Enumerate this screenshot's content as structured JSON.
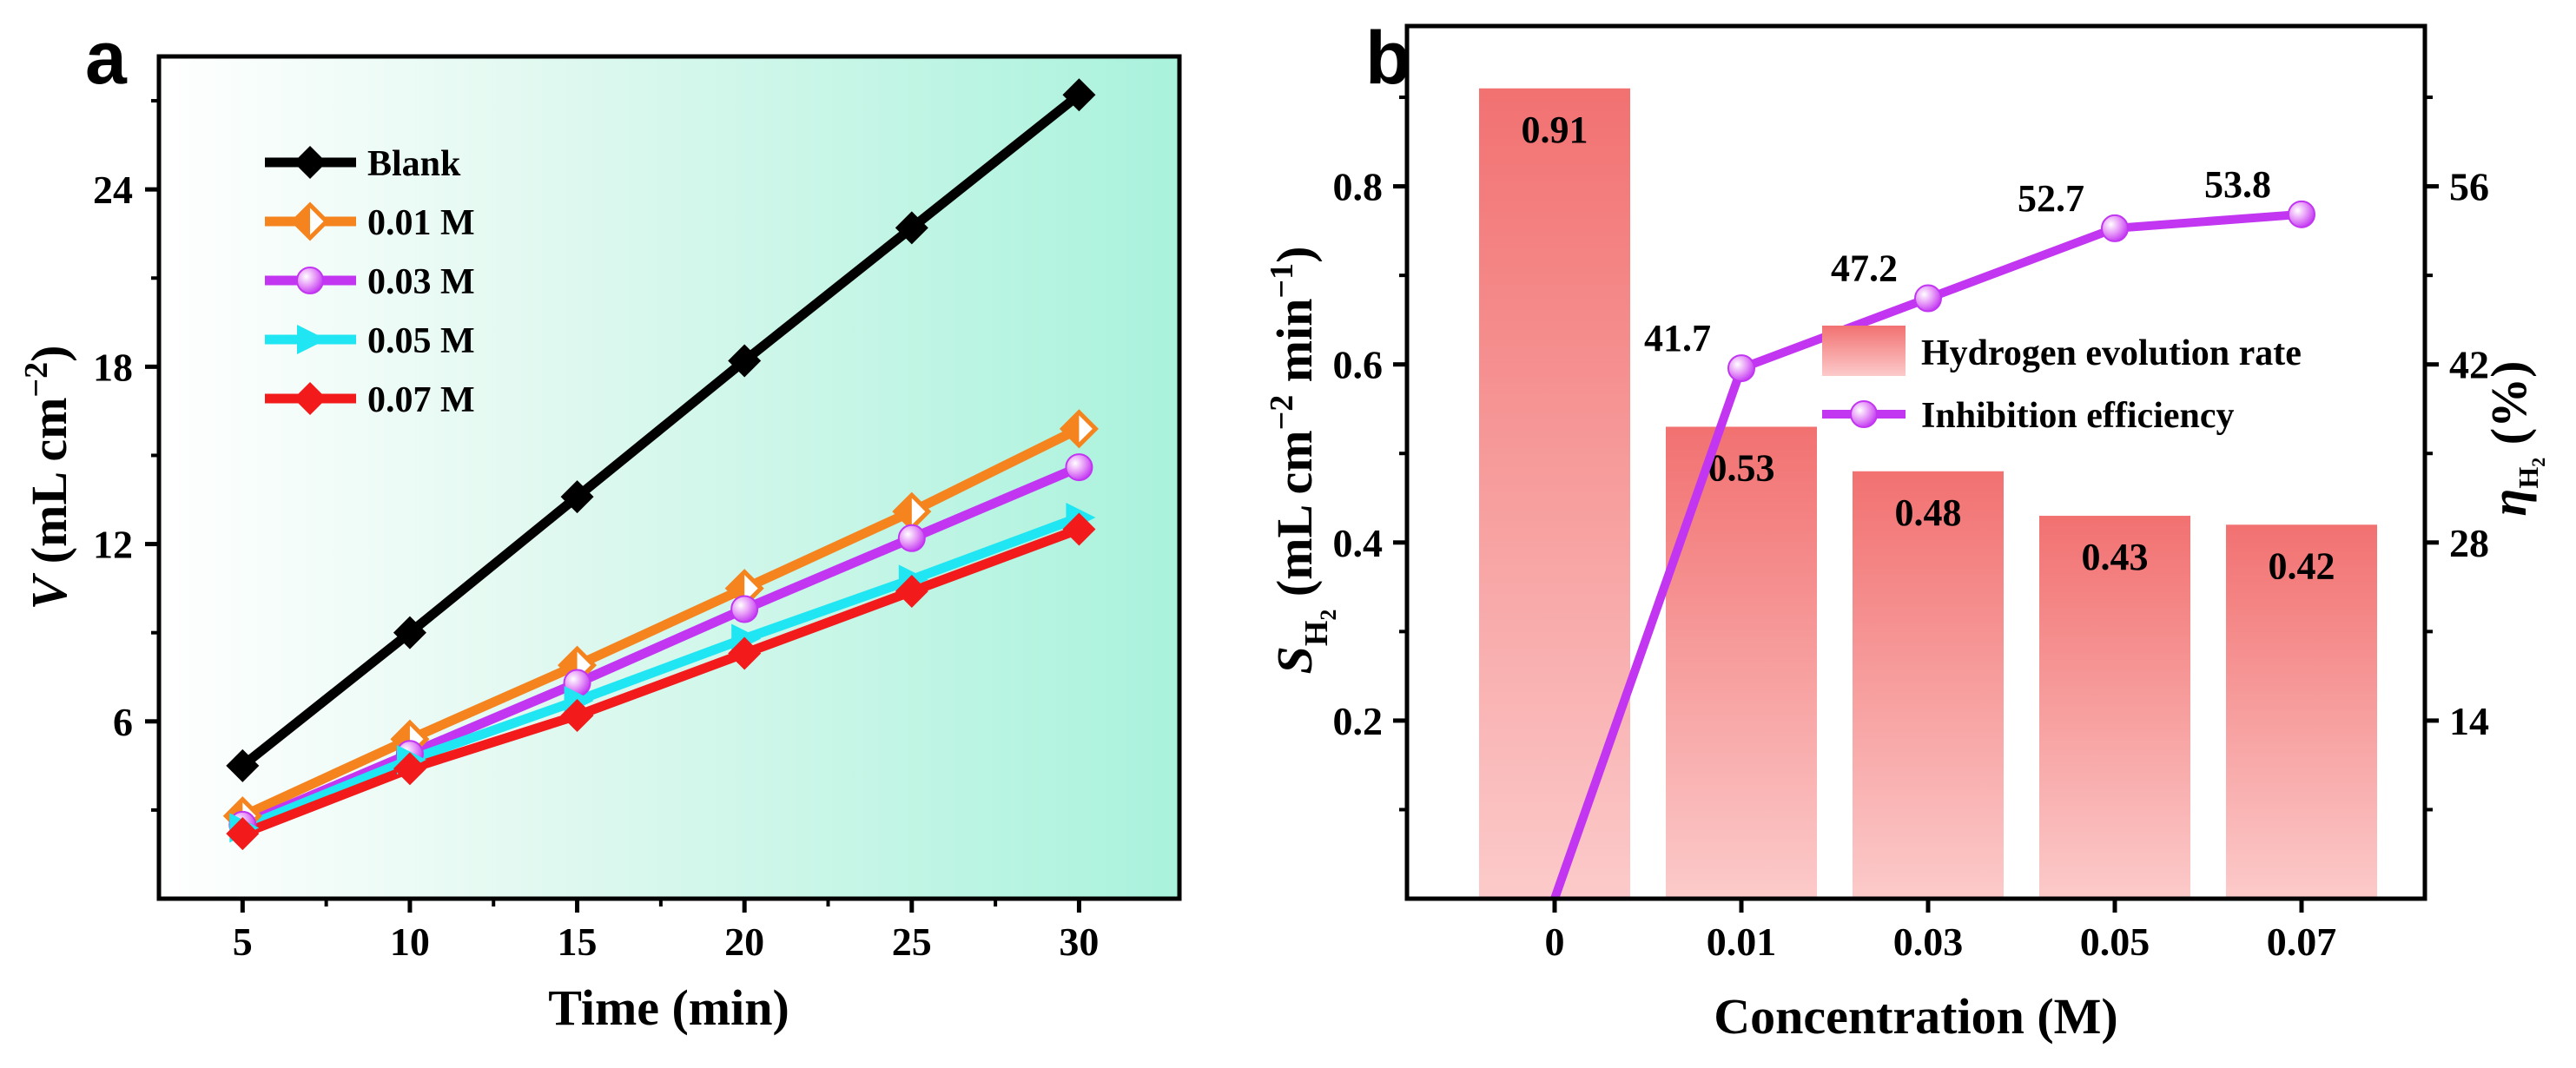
{
  "chart_data": [
    {
      "panel": "a",
      "type": "line",
      "xlabel": "Time (min)",
      "ylabel": "V (mL cm−2)",
      "x": [
        5,
        10,
        15,
        20,
        25,
        30
      ],
      "xticks": [
        "5",
        "10",
        "15",
        "20",
        "25",
        "30"
      ],
      "yticks": [
        "6",
        "12",
        "18",
        "24"
      ],
      "xlim": [
        2.5,
        33
      ],
      "ylim": [
        0,
        28.5
      ],
      "series": [
        {
          "name": "Blank",
          "values": [
            4.5,
            9.0,
            13.6,
            18.2,
            22.7,
            27.2
          ],
          "color": "#000000",
          "marker": "diamond"
        },
        {
          "name": "0.01 M",
          "values": [
            2.8,
            5.4,
            7.9,
            10.5,
            13.1,
            15.9
          ],
          "color": "#F5841F",
          "marker": "half-diamond"
        },
        {
          "name": "0.03 M",
          "values": [
            2.5,
            4.9,
            7.3,
            9.8,
            12.2,
            14.6
          ],
          "color": "#C236F2",
          "marker": "sphere"
        },
        {
          "name": "0.05 M",
          "values": [
            2.4,
            4.7,
            6.7,
            8.8,
            10.8,
            12.9
          ],
          "color": "#1FE6F2",
          "marker": "triangle-right"
        },
        {
          "name": "0.07 M",
          "values": [
            2.2,
            4.4,
            6.2,
            8.3,
            10.4,
            12.5
          ],
          "color": "#F21A1A",
          "marker": "diamond"
        }
      ]
    },
    {
      "panel": "b",
      "type": "bar+line",
      "xlabel": "Concentration (M)",
      "ylabel": "S H2 (mL cm−2 min−1)",
      "y2label": "η H2 (%)",
      "categories": [
        "0",
        "0.01",
        "0.03",
        "0.05",
        "0.07"
      ],
      "yticks": [
        "0.2",
        "0.4",
        "0.6",
        "0.8"
      ],
      "y2ticks": [
        "14",
        "28",
        "42",
        "56"
      ],
      "ylim": [
        0,
        0.98
      ],
      "y2lim": [
        0,
        68.6
      ],
      "series": [
        {
          "name": "Hydrogen evolution rate",
          "kind": "bar",
          "values": [
            0.91,
            0.53,
            0.48,
            0.43,
            0.42
          ],
          "labels": [
            "0.91",
            "0.53",
            "0.48",
            "0.43",
            "0.42"
          ],
          "color": "#F27171"
        },
        {
          "name": "Inhibition efficiency",
          "kind": "line",
          "values": [
            0,
            41.7,
            47.2,
            52.7,
            53.8
          ],
          "labels": [
            "",
            "41.7",
            "47.2",
            "52.7",
            "53.8"
          ],
          "color": "#C236F2"
        }
      ]
    }
  ]
}
